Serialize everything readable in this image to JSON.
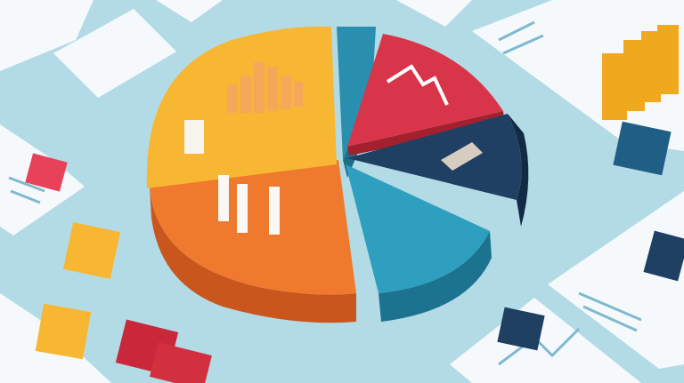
{
  "scene": {
    "background": "#b3dbe6",
    "paper": "#f6f9fb",
    "slice_colors": {
      "yellow": "#f7b733",
      "orange": "#ef7a2e",
      "teal_narrow": "#2a8fae",
      "red": "#d9354a",
      "navy": "#1f3f63",
      "teal": "#2f9fbf"
    },
    "cube_colors": [
      "#e8415a",
      "#f7b733",
      "#f7b733",
      "#c8283a",
      "#1f5f86",
      "#1f3f63",
      "#f0a81e"
    ]
  }
}
